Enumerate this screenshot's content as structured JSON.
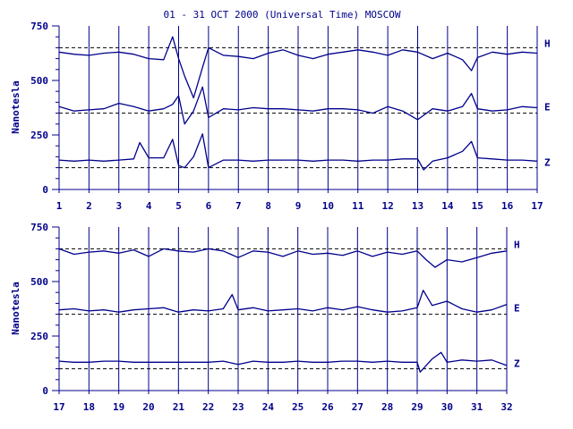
{
  "colors": {
    "ink": "#00008b",
    "background": "#ffffff"
  },
  "chart_data": {
    "title": "01 - 31 OCT 2000 (Universal Time) MOSCOW",
    "type": "line",
    "ylabel": "Nanotesla",
    "ylim": [
      0,
      750
    ],
    "yticks": [
      0,
      250,
      500,
      750
    ],
    "grid": "vertical lines at each day",
    "baselines": [
      {
        "name": "H",
        "value": 650
      },
      {
        "name": "E",
        "value": 350
      },
      {
        "name": "Z",
        "value": 100
      }
    ],
    "panels": [
      {
        "xlim": [
          1,
          17
        ],
        "xticks": [
          "1",
          "2",
          "3",
          "4",
          "5",
          "6",
          "7",
          "8",
          "9",
          "10",
          "11",
          "12",
          "13",
          "14",
          "15",
          "16",
          "17"
        ],
        "series": [
          {
            "name": "H",
            "x": [
              1,
              1.5,
              2,
              2.5,
              3,
              3.5,
              4,
              4.5,
              4.8,
              5,
              5.2,
              5.5,
              5.8,
              6,
              6.5,
              7,
              7.5,
              8,
              8.5,
              9,
              9.5,
              10,
              10.5,
              11,
              11.5,
              12,
              12.5,
              13,
              13.5,
              14,
              14.5,
              14.8,
              15,
              15.5,
              16,
              16.5,
              17
            ],
            "y": [
              630,
              620,
              615,
              625,
              630,
              620,
              600,
              595,
              700,
              600,
              520,
              420,
              560,
              650,
              615,
              610,
              600,
              625,
              640,
              615,
              600,
              620,
              630,
              640,
              630,
              615,
              640,
              630,
              600,
              625,
              595,
              545,
              605,
              630,
              620,
              630,
              625
            ]
          },
          {
            "name": "E",
            "x": [
              1,
              1.5,
              2,
              2.5,
              3,
              3.5,
              4,
              4.5,
              4.8,
              5,
              5.2,
              5.5,
              5.8,
              6,
              6.5,
              7,
              7.5,
              8,
              8.5,
              9,
              9.5,
              10,
              10.5,
              11,
              11.5,
              12,
              12.5,
              13,
              13.5,
              14,
              14.5,
              14.8,
              15,
              15.5,
              16,
              16.5,
              17
            ],
            "y": [
              380,
              360,
              365,
              370,
              395,
              380,
              360,
              370,
              390,
              430,
              300,
              360,
              470,
              330,
              370,
              365,
              375,
              370,
              370,
              365,
              360,
              370,
              370,
              365,
              350,
              380,
              360,
              320,
              370,
              360,
              380,
              440,
              370,
              360,
              365,
              380,
              375
            ]
          },
          {
            "name": "Z",
            "x": [
              1,
              1.5,
              2,
              2.5,
              3,
              3.5,
              3.7,
              4,
              4.5,
              4.8,
              5,
              5.2,
              5.5,
              5.8,
              6,
              6.5,
              7,
              7.5,
              8,
              8.5,
              9,
              9.5,
              10,
              10.5,
              11,
              11.5,
              12,
              12.5,
              13,
              13.2,
              13.5,
              14,
              14.5,
              14.8,
              15,
              15.5,
              16,
              16.5,
              17
            ],
            "y": [
              135,
              130,
              135,
              130,
              135,
              140,
              215,
              145,
              145,
              230,
              110,
              100,
              150,
              255,
              100,
              135,
              135,
              130,
              135,
              135,
              135,
              130,
              135,
              135,
              130,
              135,
              135,
              140,
              140,
              90,
              130,
              145,
              175,
              220,
              145,
              140,
              135,
              135,
              130
            ]
          }
        ]
      },
      {
        "xlim": [
          17,
          32
        ],
        "xticks": [
          "17",
          "18",
          "19",
          "20",
          "21",
          "22",
          "23",
          "24",
          "25",
          "26",
          "27",
          "28",
          "29",
          "30",
          "31",
          "32"
        ],
        "series": [
          {
            "name": "H",
            "x": [
              17,
              17.5,
              18,
              18.5,
              19,
              19.5,
              20,
              20.5,
              21,
              21.5,
              22,
              22.5,
              23,
              23.5,
              24,
              24.5,
              25,
              25.5,
              26,
              26.5,
              27,
              27.5,
              28,
              28.5,
              29,
              29.3,
              29.6,
              30,
              30.5,
              31,
              31.5,
              32
            ],
            "y": [
              650,
              625,
              635,
              640,
              630,
              645,
              615,
              650,
              640,
              635,
              650,
              640,
              610,
              640,
              635,
              615,
              640,
              625,
              630,
              620,
              640,
              615,
              635,
              625,
              640,
              600,
              565,
              600,
              590,
              610,
              630,
              640
            ]
          },
          {
            "name": "E",
            "x": [
              17,
              17.5,
              18,
              18.5,
              19,
              19.5,
              20,
              20.5,
              21,
              21.5,
              22,
              22.5,
              22.8,
              23,
              23.5,
              24,
              24.5,
              25,
              25.5,
              26,
              26.5,
              27,
              27.5,
              28,
              28.5,
              29,
              29.2,
              29.5,
              30,
              30.5,
              31,
              31.5,
              32
            ],
            "y": [
              370,
              375,
              365,
              370,
              360,
              370,
              375,
              380,
              360,
              370,
              365,
              375,
              440,
              370,
              380,
              365,
              370,
              375,
              365,
              380,
              370,
              385,
              370,
              360,
              365,
              380,
              460,
              390,
              410,
              375,
              360,
              370,
              395
            ]
          },
          {
            "name": "Z",
            "x": [
              17,
              17.5,
              18,
              18.5,
              19,
              19.5,
              20,
              20.5,
              21,
              21.5,
              22,
              22.5,
              23,
              23.5,
              24,
              24.5,
              25,
              25.5,
              26,
              26.5,
              27,
              27.5,
              28,
              28.5,
              29,
              29.1,
              29.5,
              29.8,
              30,
              30.5,
              31,
              31.5,
              32
            ],
            "y": [
              135,
              130,
              130,
              135,
              135,
              130,
              130,
              130,
              130,
              130,
              130,
              135,
              120,
              135,
              130,
              130,
              135,
              130,
              130,
              135,
              135,
              130,
              135,
              130,
              130,
              85,
              145,
              175,
              130,
              140,
              135,
              140,
              115
            ]
          }
        ]
      }
    ]
  }
}
